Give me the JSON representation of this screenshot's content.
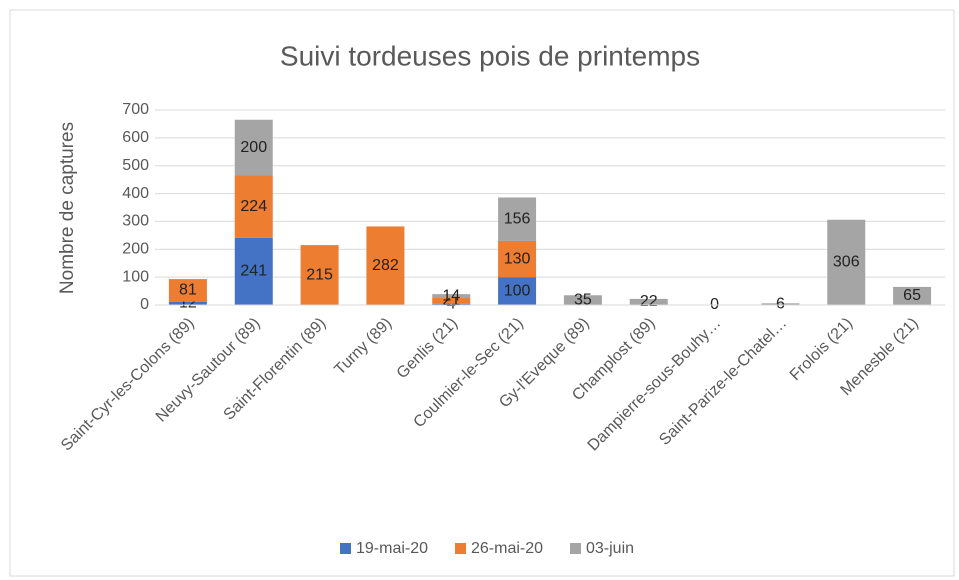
{
  "chart_data": {
    "type": "stacked-bar",
    "title": "Suivi tordeuses pois de printemps",
    "y_label": "Nombre de captures",
    "categories": [
      "Saint-Cyr-les-Colons (89)",
      "Neuvy-Sautour (89)",
      "Saint-Florentin (89)",
      "Turny (89)",
      "Genlis (21)",
      "Coulmier-le-Sec (21)",
      "Gy-l'Eveque (89)",
      "Champlost (89)",
      "Dampierre-sous-Bouhy…",
      "Saint-Parize-le-Chatel…",
      "Frolois (21)",
      "Menesble (21)"
    ],
    "series": [
      {
        "name": "19-mai-20",
        "color": "#4472c4",
        "values": [
          12,
          241,
          null,
          null,
          4,
          100,
          null,
          null,
          null,
          null,
          null,
          null
        ]
      },
      {
        "name": "26-mai-20",
        "color": "#ed7d31",
        "values": [
          81,
          224,
          215,
          282,
          21,
          130,
          null,
          null,
          null,
          null,
          null,
          null
        ]
      },
      {
        "name": "03-juin",
        "color": "#a5a5a5",
        "values": [
          null,
          200,
          null,
          null,
          14,
          156,
          35,
          22,
          0,
          6,
          306,
          65
        ]
      }
    ],
    "ylim": [
      0,
      700
    ],
    "yticks": [
      0,
      100,
      200,
      300,
      400,
      500,
      600,
      700
    ],
    "grid": true,
    "legend": "bottom"
  }
}
